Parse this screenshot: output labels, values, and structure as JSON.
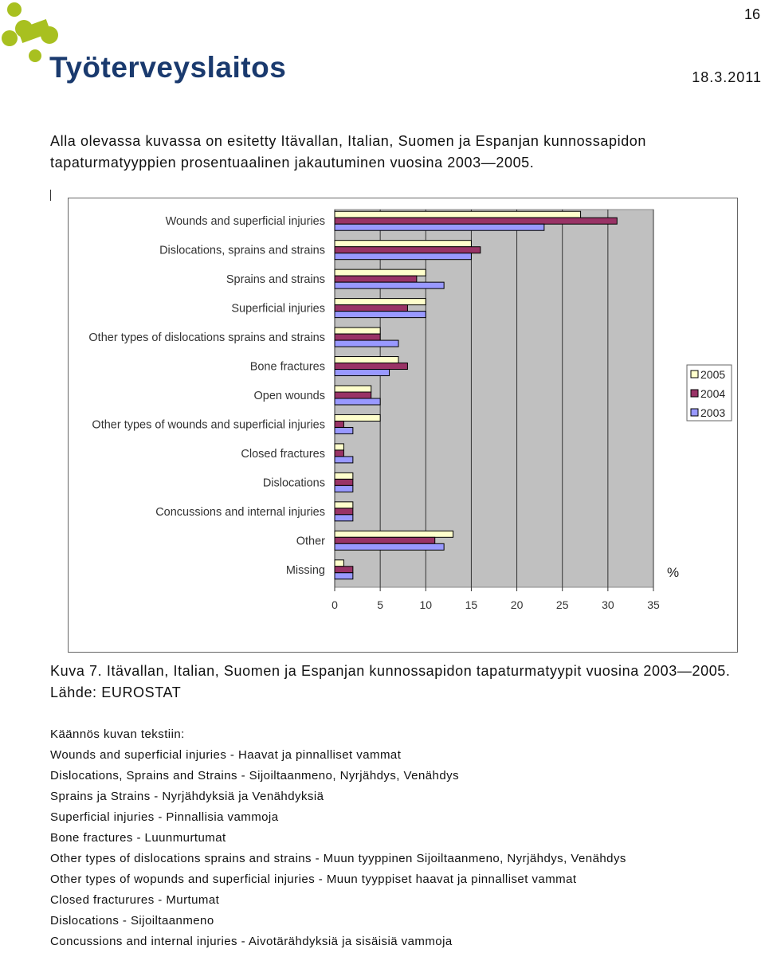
{
  "header": {
    "page_number": "16",
    "logo_text": "Työterveyslaitos",
    "date": "18.3.2011"
  },
  "intro": "Alla olevassa kuvassa on esitetty Itävallan, Italian, Suomen ja Espanjan kunnossapidon tapaturmatyyppien prosentuaalinen jakautuminen vuosina 2003—2005.",
  "chart_data": {
    "type": "hbar",
    "categories": [
      "Wounds and superficial injuries",
      "Dislocations, sprains and strains",
      "Sprains and strains",
      "Superficial injuries",
      "Other types of dislocations sprains and strains",
      "Bone fractures",
      "Open wounds",
      "Other types of wounds and superficial injuries",
      "Closed fractures",
      "Dislocations",
      "Concussions and internal injuries",
      "Other",
      "Missing"
    ],
    "series": [
      {
        "name": "2005",
        "color": "#ffffcc",
        "values": [
          27,
          15,
          10,
          10,
          5,
          7,
          4,
          5,
          1,
          2,
          2,
          13,
          1
        ]
      },
      {
        "name": "2004",
        "color": "#993366",
        "values": [
          31,
          16,
          9,
          8,
          5,
          8,
          4,
          1,
          1,
          2,
          2,
          11,
          2
        ]
      },
      {
        "name": "2003",
        "color": "#9999ff",
        "values": [
          23,
          15,
          12,
          10,
          7,
          6,
          5,
          2,
          2,
          2,
          2,
          12,
          2
        ]
      }
    ],
    "xlim": [
      0,
      35
    ],
    "xticks": [
      0,
      5,
      10,
      15,
      20,
      25,
      30,
      35
    ],
    "grid": true,
    "legend": "right",
    "annotation": "%",
    "plot_background": "#c0c0c0"
  },
  "caption": "Kuva 7. Itävallan, Italian, Suomen ja Espanjan kunnossapidon tapaturmatyypit vuosina 2003—2005. Lähde: EUROSTAT",
  "translation": {
    "heading": "Käännös kuvan tekstiin:",
    "lines": [
      "Wounds and superficial injuries - Haavat ja pinnalliset vammat",
      "Dislocations, Sprains and Strains - Sijoiltaanmeno, Nyrjähdys, Venähdys",
      "Sprains ja Strains - Nyrjähdyksiä  ja Venähdyksiä",
      "Superficial injuries - Pinnallisia vammoja",
      "Bone fractures - Luunmurtumat",
      "Other types of dislocations sprains and strains -  Muun tyyppinen Sijoiltaanmeno, Nyrjähdys, Venähdys",
      "Other types of wopunds and superficial injuries - Muun tyyppiset haavat ja pinnalliset vammat",
      "Closed fracturures - Murtumat",
      "Dislocations - Sijoiltaanmeno",
      "Concussions and internal injuries - Aivotärähdyksiä ja sisäisiä vammoja"
    ]
  }
}
